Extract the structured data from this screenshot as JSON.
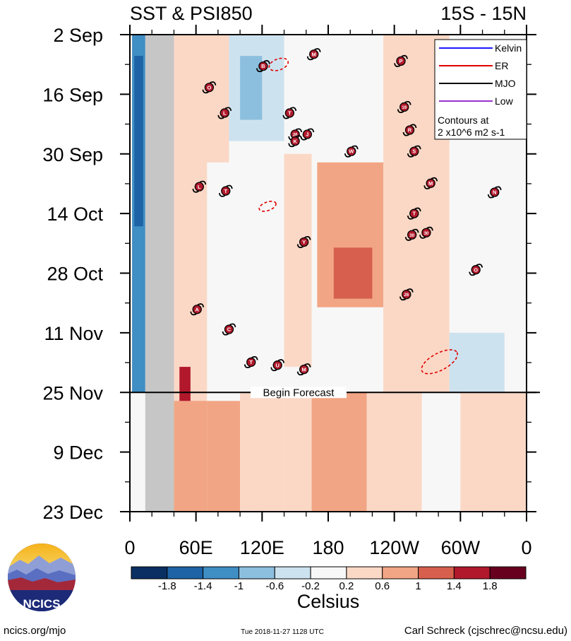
{
  "chart_data": {
    "type": "heatmap",
    "title_left": "SST & PSI850",
    "title_right": "15S - 15N",
    "y_ticks": [
      "2 Sep",
      "16 Sep",
      "30 Sep",
      "14 Oct",
      "28 Oct",
      "11 Nov",
      "25 Nov",
      "9 Dec",
      "23 Dec"
    ],
    "y_range_days": [
      0,
      112
    ],
    "x_ticks": [
      "0",
      "60E",
      "120E",
      "180",
      "120W",
      "60W",
      "0"
    ],
    "x_tick_values": [
      0,
      60,
      120,
      180,
      240,
      300,
      360
    ],
    "x_range_deg": [
      0,
      360
    ],
    "land_mask_deg": [
      14,
      40
    ],
    "forecast": {
      "label": "Begin Forecast",
      "day": 84
    },
    "colorbar": {
      "unit_label": "Celsius",
      "tick_labels": [
        "-1.8",
        "-1.4",
        "-1",
        "-0.6",
        "-0.2",
        "0.2",
        "0.6",
        "1",
        "1.4",
        "1.8"
      ],
      "bounds": [
        -2.2,
        -1.8,
        -1.4,
        -1.0,
        -0.6,
        -0.2,
        0.2,
        0.6,
        1.0,
        1.4,
        1.8,
        2.2
      ],
      "colors": [
        "#0a2f62",
        "#1d63a5",
        "#3f8ec4",
        "#8cbfdd",
        "#cde2ef",
        "#f7f7f7",
        "#fbd8c6",
        "#f2a584",
        "#d6604d",
        "#b2182b",
        "#67001f"
      ]
    },
    "legend": {
      "entries": [
        {
          "label": "Kelvin",
          "color": "#1a1aff"
        },
        {
          "label": "ER",
          "color": "#e00000"
        },
        {
          "label": "MJO",
          "color": "#000000"
        },
        {
          "label": "Low",
          "color": "#9933cc"
        }
      ],
      "note_line1": "Contours at",
      "note_line2": "2 x10^6 m2 s-1"
    },
    "anomaly_bands": [
      {
        "x": [
          0,
          360
        ],
        "day": [
          0,
          112
        ],
        "v": 0.12
      },
      {
        "x": [
          40,
          70
        ],
        "day": [
          0,
          112
        ],
        "v": 0.5
      },
      {
        "x": [
          40,
          70
        ],
        "day": [
          86,
          112
        ],
        "v": 0.95
      },
      {
        "x": [
          70,
          100
        ],
        "day": [
          86,
          112
        ],
        "v": 0.7
      },
      {
        "x": [
          100,
          140
        ],
        "day": [
          84,
          112
        ],
        "v": 0.45
      },
      {
        "x": [
          140,
          165
        ],
        "day": [
          84,
          112
        ],
        "v": 0.3
      },
      {
        "x": [
          165,
          215
        ],
        "day": [
          84,
          112
        ],
        "v": 0.7
      },
      {
        "x": [
          215,
          265
        ],
        "day": [
          84,
          112
        ],
        "v": 0.3
      },
      {
        "x": [
          265,
          300
        ],
        "day": [
          86,
          112
        ],
        "v": -0.15
      },
      {
        "x": [
          300,
          360
        ],
        "day": [
          84,
          112
        ],
        "v": 0.3
      },
      {
        "x": [
          2,
          14
        ],
        "day": [
          0,
          84
        ],
        "v": -1.3
      },
      {
        "x": [
          4,
          12
        ],
        "day": [
          5,
          45
        ],
        "v": -1.7
      },
      {
        "x": [
          90,
          140
        ],
        "day": [
          0,
          25
        ],
        "v": -0.4
      },
      {
        "x": [
          100,
          120
        ],
        "day": [
          5,
          20
        ],
        "v": -0.8
      },
      {
        "x": [
          60,
          90
        ],
        "day": [
          0,
          30
        ],
        "v": 0.45
      },
      {
        "x": [
          170,
          230
        ],
        "day": [
          30,
          64
        ],
        "v": 0.9
      },
      {
        "x": [
          185,
          220
        ],
        "day": [
          50,
          62
        ],
        "v": 1.3
      },
      {
        "x": [
          230,
          290
        ],
        "day": [
          0,
          84
        ],
        "v": 0.5
      },
      {
        "x": [
          140,
          165
        ],
        "day": [
          28,
          78
        ],
        "v": 0.5
      },
      {
        "x": [
          45,
          55
        ],
        "day": [
          78,
          86
        ],
        "v": 1.5
      },
      {
        "x": [
          290,
          340
        ],
        "day": [
          70,
          84
        ],
        "v": -0.25
      },
      {
        "x": [
          100,
          130
        ],
        "day": [
          30,
          80
        ],
        "v": -0.15
      }
    ],
    "cyclones": [
      {
        "label": "B",
        "lon": 121,
        "day": 7.4
      },
      {
        "label": "M",
        "lon": 167,
        "day": 4.6
      },
      {
        "label": "P",
        "lon": 246,
        "day": 6.2
      },
      {
        "label": "O",
        "lon": 72,
        "day": 12.4
      },
      {
        "label": "L",
        "lon": 86,
        "day": 18.4
      },
      {
        "label": "T",
        "lon": 145,
        "day": 18.4
      },
      {
        "label": "19",
        "lon": 249,
        "day": 17.0
      },
      {
        "label": "R",
        "lon": 254,
        "day": 22.4
      },
      {
        "label": "26",
        "lon": 150,
        "day": 23.4
      },
      {
        "label": "K",
        "lon": 150,
        "day": 25.0
      },
      {
        "label": "J",
        "lon": 161,
        "day": 23.4
      },
      {
        "label": "W",
        "lon": 201,
        "day": 27.4
      },
      {
        "label": "S",
        "lon": 258,
        "day": 27.4
      },
      {
        "label": "L",
        "lon": 63,
        "day": 35.7
      },
      {
        "label": "T",
        "lon": 87,
        "day": 36.7
      },
      {
        "label": "M",
        "lon": 273,
        "day": 34.9
      },
      {
        "label": "N",
        "lon": 331,
        "day": 37.0
      },
      {
        "label": "T",
        "lon": 258,
        "day": 42.0
      },
      {
        "label": "30",
        "lon": 256,
        "day": 47.0
      },
      {
        "label": "30",
        "lon": 269,
        "day": 46.5
      },
      {
        "label": "Y",
        "lon": 158,
        "day": 48.7
      },
      {
        "label": "O",
        "lon": 314,
        "day": 55.2
      },
      {
        "label": "26",
        "lon": 251,
        "day": 61.0
      },
      {
        "label": "A",
        "lon": 61,
        "day": 64.5
      },
      {
        "label": "C",
        "lon": 90,
        "day": 69.2
      },
      {
        "label": "T",
        "lon": 110,
        "day": 76.9
      },
      {
        "label": "U",
        "lon": 134,
        "day": 77.6
      },
      {
        "label": "M",
        "lon": 158,
        "day": 78.6
      }
    ],
    "er_ellipses": [
      {
        "lon": 135,
        "day": 7.0,
        "rlon": 9,
        "rday": 1.3,
        "rot": -20
      },
      {
        "lon": 125,
        "day": 40.3,
        "rlon": 8,
        "rday": 1.0,
        "rot": -20
      },
      {
        "lon": 281,
        "day": 76.8,
        "rlon": 18,
        "rday": 2.0,
        "rot": -28
      }
    ]
  },
  "logo": {
    "text": "NCICS"
  },
  "footer": {
    "left": "ncics.org/mjo",
    "center": "Tue 2018-11-27 1128 UTC",
    "right": "Carl Schreck (cjschrec@ncsu.edu)"
  }
}
